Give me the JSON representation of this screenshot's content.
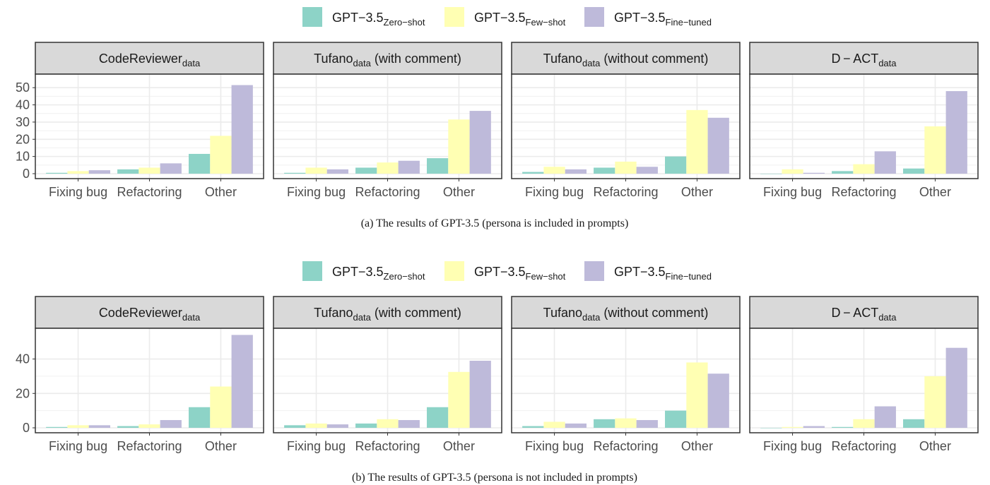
{
  "legend": {
    "items": [
      {
        "base": "GPT−3.5",
        "sub": "Zero−shot",
        "color": "#8dd3c7"
      },
      {
        "base": "GPT−3.5",
        "sub": "Few−shot",
        "color": "#ffffb3"
      },
      {
        "base": "GPT−3.5",
        "sub": "Fine−tuned",
        "color": "#bebada"
      }
    ]
  },
  "chart_data": [
    {
      "type": "bar",
      "caption": "(a) The results of GPT-3.5 (persona is included in prompts)",
      "ylim": [
        0,
        55
      ],
      "yticks": [
        0,
        10,
        20,
        30,
        40,
        50
      ],
      "categories": [
        "Fixing bug",
        "Refactoring",
        "Other"
      ],
      "series_names": [
        "GPT−3.5 Zero−shot",
        "GPT−3.5 Few−shot",
        "GPT−3.5 Fine−tuned"
      ],
      "panels": [
        {
          "title": "CodeReviewer",
          "sub": "data",
          "suffix": "",
          "values": [
            [
              0.5,
              2.5,
              11.5
            ],
            [
              1.5,
              3.5,
              22
            ],
            [
              2,
              6,
              51.5
            ]
          ]
        },
        {
          "title": "Tufano",
          "sub": "data",
          "suffix": " (with comment)",
          "values": [
            [
              0.5,
              3.5,
              9
            ],
            [
              3.5,
              6.5,
              31.5
            ],
            [
              2.5,
              7.5,
              36.5
            ]
          ]
        },
        {
          "title": "Tufano",
          "sub": "data",
          "suffix": " (without comment)",
          "values": [
            [
              1,
              3.5,
              10
            ],
            [
              4,
              7,
              37
            ],
            [
              2.5,
              4,
              32.5
            ]
          ]
        },
        {
          "title": "D − ACT",
          "sub": "data",
          "suffix": "",
          "values": [
            [
              0,
              1.5,
              3
            ],
            [
              2.5,
              5.5,
              27.5
            ],
            [
              0.5,
              13,
              48
            ]
          ]
        }
      ]
    },
    {
      "type": "bar",
      "caption": "(b) The results of GPT-3.5 (persona is not included in prompts)",
      "ylim": [
        0,
        55
      ],
      "yticks": [
        0,
        20,
        40
      ],
      "categories": [
        "Fixing bug",
        "Refactoring",
        "Other"
      ],
      "series_names": [
        "GPT−3.5 Zero−shot",
        "GPT−3.5 Few−shot",
        "GPT−3.5 Fine−tuned"
      ],
      "panels": [
        {
          "title": "CodeReviewer",
          "sub": "data",
          "suffix": "",
          "values": [
            [
              0.5,
              1,
              12
            ],
            [
              1.5,
              2,
              24
            ],
            [
              1.5,
              4.5,
              54
            ]
          ]
        },
        {
          "title": "Tufano",
          "sub": "data",
          "suffix": " (with comment)",
          "values": [
            [
              1.5,
              2.5,
              12
            ],
            [
              2.5,
              5,
              32.5
            ],
            [
              2,
              4.5,
              39
            ]
          ]
        },
        {
          "title": "Tufano",
          "sub": "data",
          "suffix": " (without comment)",
          "values": [
            [
              1,
              5,
              10
            ],
            [
              3.5,
              5.5,
              38
            ],
            [
              2.5,
              4.5,
              31.5
            ]
          ]
        },
        {
          "title": "D − ACT",
          "sub": "data",
          "suffix": "",
          "values": [
            [
              0,
              0.5,
              5
            ],
            [
              0.5,
              5,
              30
            ],
            [
              1,
              12.5,
              46.5
            ]
          ]
        }
      ]
    }
  ]
}
